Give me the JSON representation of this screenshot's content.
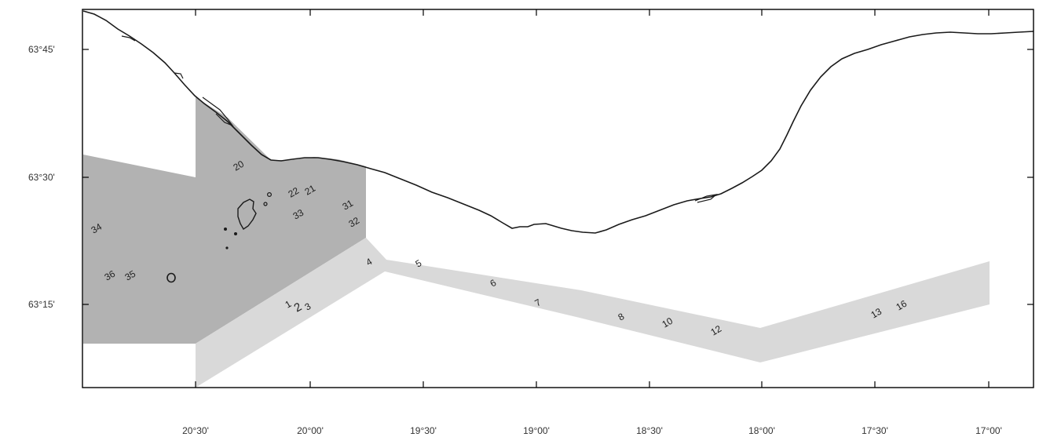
{
  "map": {
    "colors": {
      "background": "#ffffff",
      "dark_zone": "#b2b2b2",
      "light_zone": "#d9d9d9",
      "coastline": "#1a1a1a",
      "frame": "#000000"
    },
    "lat_labels": [
      "63°45'",
      "63°30'",
      "63°15'"
    ],
    "lon_labels": [
      "20°30'",
      "20°00'",
      "19°30'",
      "19°00'",
      "18°30'",
      "18°00'",
      "17°30'",
      "17°00'"
    ],
    "stations": [
      {
        "id": "s20",
        "label": "20"
      },
      {
        "id": "s22",
        "label": "22"
      },
      {
        "id": "s21",
        "label": "21"
      },
      {
        "id": "s33",
        "label": "33"
      },
      {
        "id": "s31",
        "label": "31"
      },
      {
        "id": "s32",
        "label": "32"
      },
      {
        "id": "s34",
        "label": "34"
      },
      {
        "id": "s36",
        "label": "36"
      },
      {
        "id": "s35",
        "label": "35"
      },
      {
        "id": "s1",
        "label": "1"
      },
      {
        "id": "s2",
        "label": "2"
      },
      {
        "id": "s3",
        "label": "3"
      },
      {
        "id": "s4",
        "label": "4"
      },
      {
        "id": "s5",
        "label": "5"
      },
      {
        "id": "s6",
        "label": "6"
      },
      {
        "id": "s7",
        "label": "7"
      },
      {
        "id": "s8",
        "label": "8"
      },
      {
        "id": "s10",
        "label": "10"
      },
      {
        "id": "s12",
        "label": "12"
      },
      {
        "id": "s13",
        "label": "13"
      },
      {
        "id": "s16",
        "label": "16"
      }
    ]
  }
}
